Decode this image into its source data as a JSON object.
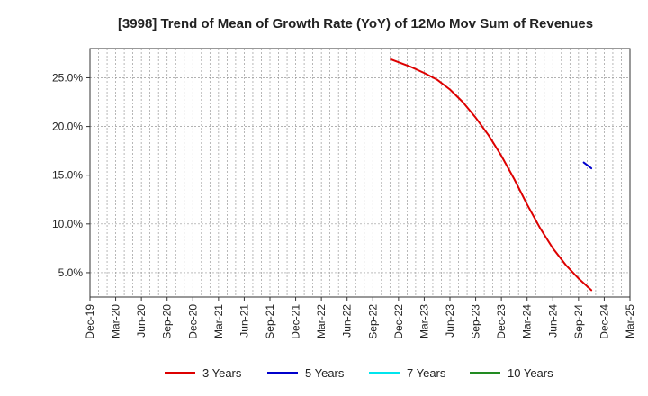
{
  "chart_data": {
    "type": "line",
    "title": "[3998]  Trend of Mean of Growth Rate (YoY) of 12Mo Mov Sum of Revenues",
    "xlabel": "",
    "ylabel": "",
    "x_tick_labels": [
      "Dec-19",
      "Mar-20",
      "Jun-20",
      "Sep-20",
      "Dec-20",
      "Mar-21",
      "Jun-21",
      "Sep-21",
      "Dec-21",
      "Mar-22",
      "Jun-22",
      "Sep-22",
      "Dec-22",
      "Mar-23",
      "Jun-23",
      "Sep-23",
      "Dec-23",
      "Mar-24",
      "Jun-24",
      "Sep-24",
      "Dec-24",
      "Mar-25"
    ],
    "y_ticks": [
      5.0,
      10.0,
      15.0,
      20.0,
      25.0
    ],
    "y_tick_labels": [
      "5.0%",
      "10.0%",
      "15.0%",
      "20.0%",
      "25.0%"
    ],
    "ylim": [
      2.5,
      28.0
    ],
    "grid": true,
    "legend_position": "bottom",
    "series": [
      {
        "name": "3 Years",
        "color": "#dd0000",
        "points": [
          [
            11.7,
            26.9
          ],
          [
            12.0,
            26.6
          ],
          [
            12.5,
            26.1
          ],
          [
            13.0,
            25.5
          ],
          [
            13.5,
            24.8
          ],
          [
            14.0,
            23.8
          ],
          [
            14.5,
            22.5
          ],
          [
            15.0,
            20.9
          ],
          [
            15.5,
            19.1
          ],
          [
            16.0,
            17.0
          ],
          [
            16.5,
            14.6
          ],
          [
            17.0,
            12.0
          ],
          [
            17.5,
            9.6
          ],
          [
            18.0,
            7.5
          ],
          [
            18.5,
            5.8
          ],
          [
            19.0,
            4.4
          ],
          [
            19.5,
            3.2
          ]
        ]
      },
      {
        "name": "5 Years",
        "color": "#0000cc",
        "points": [
          [
            19.2,
            16.3
          ],
          [
            19.5,
            15.7
          ]
        ]
      },
      {
        "name": "7 Years",
        "color": "#00e5ee",
        "points": []
      },
      {
        "name": "10 Years",
        "color": "#228b22",
        "points": []
      }
    ]
  }
}
